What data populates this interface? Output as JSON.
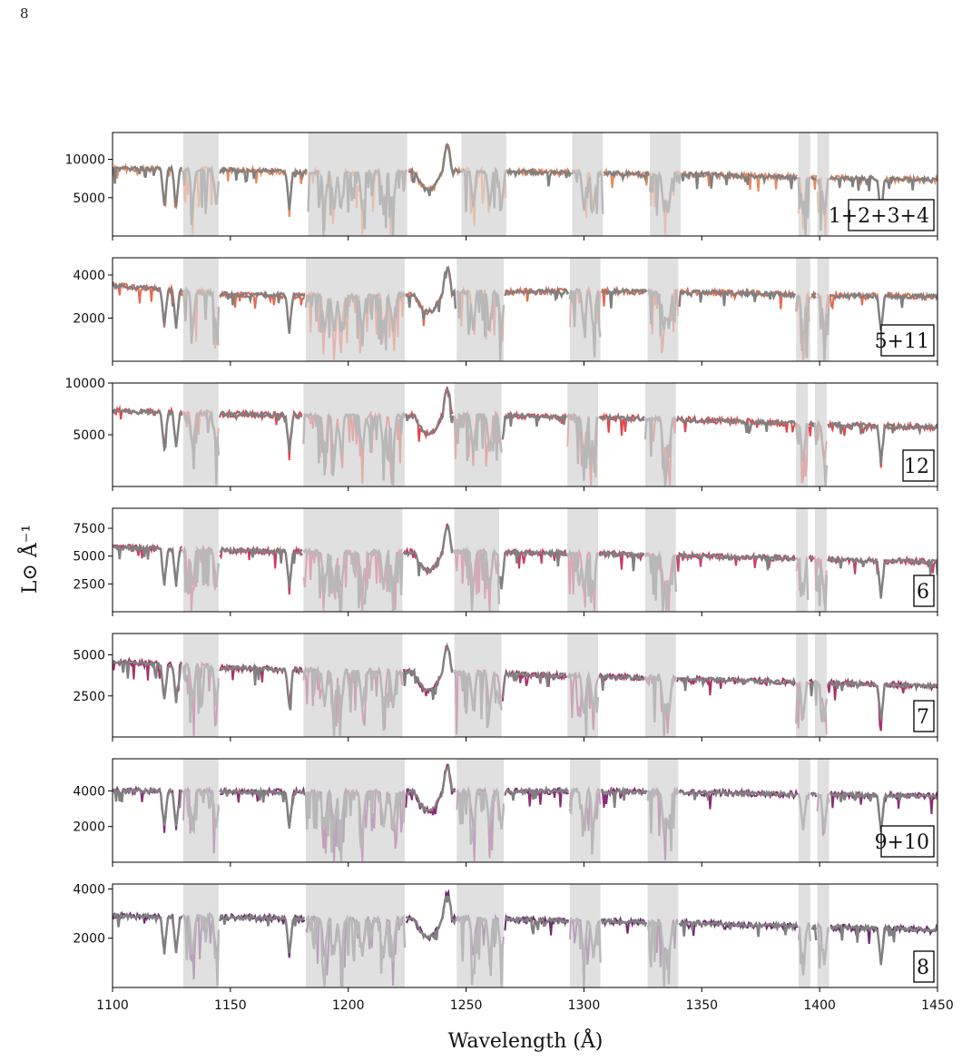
{
  "page_number": "8",
  "colors": {
    "model": "#808080",
    "model_masked": "#b8b8b8",
    "mask_band": "#e0e0e0",
    "axis": "#000000"
  },
  "chart_data": {
    "type": "line",
    "xlabel": "Wavelength (Å)",
    "ylabel": "L⊙ Å⁻¹",
    "xlim": [
      1100,
      1450
    ],
    "x_ticks": [
      1100,
      1150,
      1200,
      1250,
      1300,
      1350,
      1400,
      1450
    ],
    "panels": [
      {
        "label": "1+2+3+4",
        "color": "#e8875c",
        "ylim": [
          0,
          13500
        ],
        "y_ticks": [
          5000,
          10000
        ],
        "continuum": [
          [
            1100,
            8800
          ],
          [
            1150,
            8600
          ],
          [
            1200,
            8200
          ],
          [
            1250,
            8500
          ],
          [
            1300,
            8200
          ],
          [
            1350,
            8000
          ],
          [
            1400,
            7600
          ],
          [
            1450,
            7300
          ]
        ],
        "masks": [
          [
            1130,
            1145
          ],
          [
            1183,
            1225
          ],
          [
            1248,
            1267
          ],
          [
            1295,
            1308
          ],
          [
            1328,
            1341
          ],
          [
            1391,
            1396
          ],
          [
            1399,
            1404
          ]
        ]
      },
      {
        "label": "5+11",
        "color": "#e5684e",
        "ylim": [
          0,
          4800
        ],
        "y_ticks": [
          2000,
          4000
        ],
        "continuum": [
          [
            1100,
            3500
          ],
          [
            1150,
            3100
          ],
          [
            1200,
            3000
          ],
          [
            1250,
            3200
          ],
          [
            1300,
            3250
          ],
          [
            1350,
            3200
          ],
          [
            1400,
            3050
          ],
          [
            1450,
            3000
          ]
        ],
        "masks": [
          [
            1130,
            1145
          ],
          [
            1182,
            1224
          ],
          [
            1246,
            1266
          ],
          [
            1294,
            1307
          ],
          [
            1327,
            1340
          ],
          [
            1390,
            1396
          ],
          [
            1399,
            1404
          ]
        ]
      },
      {
        "label": "12",
        "color": "#e0474e",
        "ylim": [
          0,
          10000
        ],
        "y_ticks": [
          5000,
          10000
        ],
        "continuum": [
          [
            1100,
            7300
          ],
          [
            1150,
            7000
          ],
          [
            1200,
            6800
          ],
          [
            1250,
            6900
          ],
          [
            1300,
            6700
          ],
          [
            1350,
            6400
          ],
          [
            1400,
            6000
          ],
          [
            1450,
            5700
          ]
        ],
        "masks": [
          [
            1130,
            1145
          ],
          [
            1181,
            1224
          ],
          [
            1245,
            1265
          ],
          [
            1293,
            1306
          ],
          [
            1326,
            1339
          ],
          [
            1390,
            1395
          ],
          [
            1398,
            1403
          ]
        ]
      },
      {
        "label": "6",
        "color": "#cb3d63",
        "ylim": [
          0,
          9300
        ],
        "y_ticks": [
          2500,
          5000,
          7500
        ],
        "continuum": [
          [
            1100,
            5800
          ],
          [
            1150,
            5500
          ],
          [
            1200,
            5300
          ],
          [
            1250,
            5400
          ],
          [
            1300,
            5200
          ],
          [
            1350,
            5000
          ],
          [
            1400,
            4700
          ],
          [
            1450,
            4500
          ]
        ],
        "masks": [
          [
            1130,
            1145
          ],
          [
            1181,
            1223
          ],
          [
            1245,
            1264
          ],
          [
            1293,
            1306
          ],
          [
            1326,
            1339
          ],
          [
            1390,
            1395
          ],
          [
            1398,
            1403
          ]
        ]
      },
      {
        "label": "7",
        "color": "#a8306b",
        "ylim": [
          0,
          6300
        ],
        "y_ticks": [
          2500,
          5000
        ],
        "continuum": [
          [
            1100,
            4600
          ],
          [
            1150,
            4200
          ],
          [
            1200,
            4000
          ],
          [
            1250,
            3900
          ],
          [
            1300,
            3700
          ],
          [
            1350,
            3500
          ],
          [
            1400,
            3300
          ],
          [
            1450,
            3100
          ]
        ],
        "masks": [
          [
            1130,
            1145
          ],
          [
            1181,
            1223
          ],
          [
            1245,
            1265
          ],
          [
            1293,
            1306
          ],
          [
            1326,
            1339
          ],
          [
            1390,
            1395
          ],
          [
            1398,
            1403
          ]
        ]
      },
      {
        "label": "9+10",
        "color": "#8a2b75",
        "ylim": [
          0,
          5800
        ],
        "y_ticks": [
          2000,
          4000
        ],
        "continuum": [
          [
            1100,
            4000
          ],
          [
            1150,
            3950
          ],
          [
            1200,
            3900
          ],
          [
            1250,
            3950
          ],
          [
            1300,
            4000
          ],
          [
            1350,
            3900
          ],
          [
            1400,
            3800
          ],
          [
            1450,
            3700
          ]
        ],
        "masks": [
          [
            1130,
            1145
          ],
          [
            1182,
            1224
          ],
          [
            1246,
            1266
          ],
          [
            1294,
            1307
          ],
          [
            1327,
            1340
          ],
          [
            1391,
            1396
          ],
          [
            1399,
            1404
          ]
        ]
      },
      {
        "label": "8",
        "color": "#6e2a70",
        "ylim": [
          0,
          4200
        ],
        "y_ticks": [
          2000,
          4000
        ],
        "continuum": [
          [
            1100,
            2900
          ],
          [
            1150,
            2850
          ],
          [
            1200,
            2750
          ],
          [
            1250,
            2800
          ],
          [
            1300,
            2700
          ],
          [
            1350,
            2600
          ],
          [
            1400,
            2450
          ],
          [
            1450,
            2350
          ]
        ],
        "masks": [
          [
            1130,
            1145
          ],
          [
            1182,
            1224
          ],
          [
            1246,
            1266
          ],
          [
            1294,
            1307
          ],
          [
            1327,
            1340
          ],
          [
            1391,
            1396
          ],
          [
            1399,
            1404
          ]
        ]
      }
    ],
    "absorption_lines": [
      1122,
      1127,
      1134,
      1144,
      1175,
      1190,
      1194,
      1197,
      1206,
      1215,
      1219,
      1253,
      1260,
      1265,
      1300,
      1304,
      1334,
      1336,
      1393,
      1402,
      1426
    ]
  }
}
